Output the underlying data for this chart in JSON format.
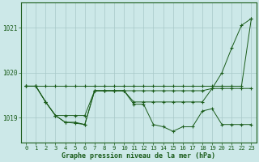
{
  "xlabel": "Graphe pression niveau de la mer (hPa)",
  "bg_color": "#cce8e8",
  "line_color": "#1a5c1a",
  "marker": "+",
  "x": [
    0,
    1,
    2,
    3,
    4,
    5,
    6,
    7,
    8,
    9,
    10,
    11,
    12,
    13,
    14,
    15,
    16,
    17,
    18,
    19,
    20,
    21,
    22,
    23
  ],
  "series": [
    [
      1019.7,
      1019.7,
      1019.7,
      1019.7,
      1019.7,
      1019.7,
      1019.7,
      1019.7,
      1019.7,
      1019.7,
      1019.7,
      1019.7,
      1019.7,
      1019.7,
      1019.7,
      1019.7,
      1019.7,
      1019.7,
      1019.7,
      1019.7,
      1019.7,
      1019.7,
      1019.7,
      1021.2
    ],
    [
      1019.7,
      1019.7,
      1019.35,
      1019.05,
      1019.05,
      1019.05,
      1019.05,
      1019.6,
      1019.6,
      1019.6,
      1019.6,
      1019.6,
      1019.6,
      1019.6,
      1019.6,
      1019.6,
      1019.6,
      1019.6,
      1019.6,
      1019.65,
      1019.65,
      1019.65,
      1019.65,
      1019.65
    ],
    [
      1019.7,
      1019.7,
      1019.35,
      1019.05,
      1018.9,
      1018.9,
      1018.85,
      1019.6,
      1019.6,
      1019.6,
      1019.6,
      1019.35,
      1019.35,
      1019.35,
      1019.35,
      1019.35,
      1019.35,
      1019.35,
      1019.35,
      1019.65,
      1020.0,
      1020.55,
      1021.05,
      1021.2
    ],
    [
      1019.7,
      1019.7,
      1019.35,
      1019.05,
      1018.9,
      1018.88,
      1018.85,
      1019.6,
      1019.6,
      1019.6,
      1019.6,
      1019.3,
      1019.3,
      1018.85,
      1018.8,
      1018.7,
      1018.8,
      1018.8,
      1019.15,
      1019.2,
      1018.85,
      1018.85,
      1018.85,
      1018.85
    ]
  ],
  "yticks": [
    1019,
    1020,
    1021
  ],
  "ylim": [
    1018.45,
    1021.55
  ],
  "xlim": [
    -0.5,
    23.5
  ]
}
